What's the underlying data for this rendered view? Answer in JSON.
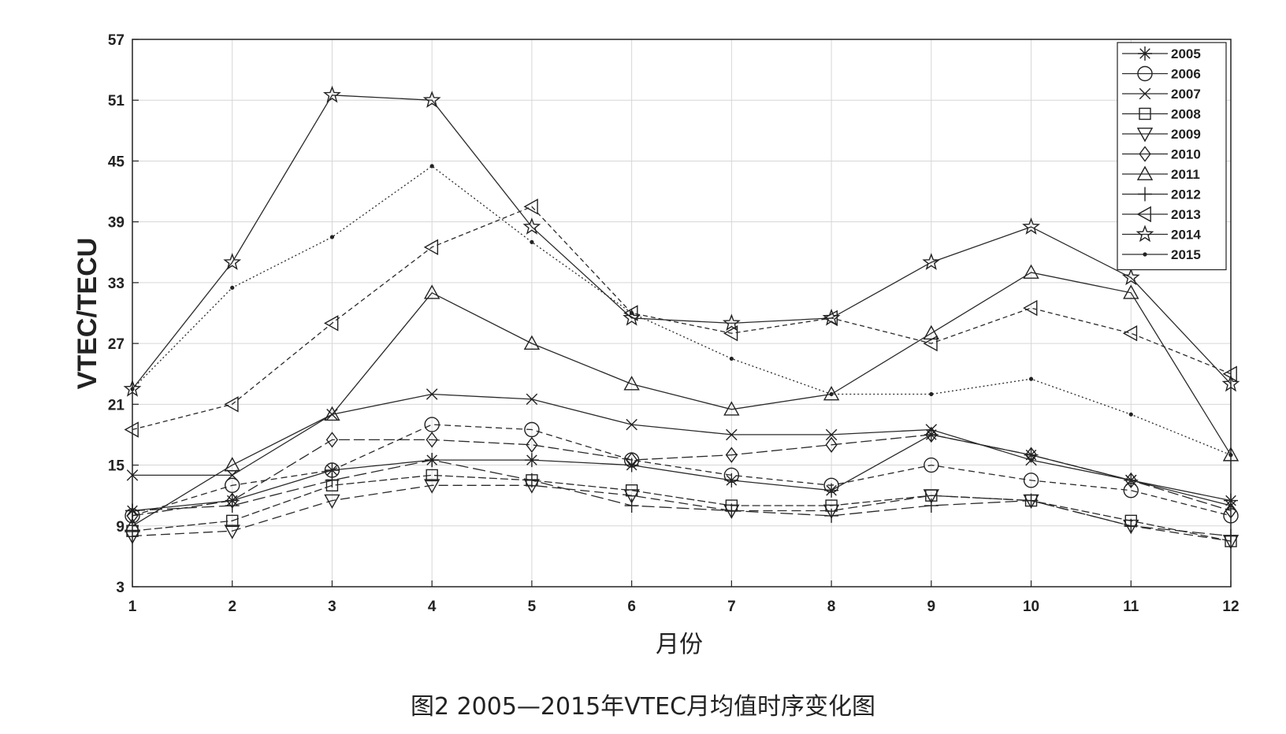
{
  "caption": "图2 2005—2015年VTEC月均值时序变化图",
  "chart_data": {
    "type": "line",
    "xlabel": "月份",
    "ylabel": "VTEC/TECU",
    "x": [
      1,
      2,
      3,
      4,
      5,
      6,
      7,
      8,
      9,
      10,
      11,
      12
    ],
    "xticks": [
      "1",
      "2",
      "3",
      "4",
      "5",
      "6",
      "7",
      "8",
      "9",
      "10",
      "11",
      "12"
    ],
    "ylim": [
      3,
      57
    ],
    "yticks": [
      "3",
      "9",
      "15",
      "21",
      "27",
      "33",
      "39",
      "45",
      "51",
      "57"
    ],
    "grid": true,
    "legend_position": "top-right",
    "series": [
      {
        "name": "2005",
        "marker": "asterisk",
        "values": [
          10.5,
          11.5,
          14.5,
          15.5,
          15.5,
          15.0,
          13.5,
          12.5,
          18.0,
          16.0,
          13.5,
          11.5
        ]
      },
      {
        "name": "2006",
        "marker": "circle",
        "values": [
          10.0,
          13.0,
          14.5,
          19.0,
          18.5,
          15.5,
          14.0,
          13.0,
          15.0,
          13.5,
          12.5,
          10.0
        ]
      },
      {
        "name": "2007",
        "marker": "x",
        "values": [
          14.0,
          14.0,
          20.0,
          22.0,
          21.5,
          19.0,
          18.0,
          18.0,
          18.5,
          15.5,
          13.5,
          11.0
        ]
      },
      {
        "name": "2008",
        "marker": "square",
        "values": [
          8.5,
          9.5,
          13.0,
          14.0,
          13.5,
          12.5,
          11.0,
          11.0,
          12.0,
          11.5,
          9.5,
          7.5
        ]
      },
      {
        "name": "2009",
        "marker": "triangle-down",
        "values": [
          8.0,
          8.5,
          11.5,
          13.0,
          13.0,
          12.0,
          10.5,
          10.5,
          12.0,
          11.5,
          9.0,
          7.5
        ]
      },
      {
        "name": "2010",
        "marker": "diamond",
        "values": [
          10.0,
          11.5,
          17.5,
          17.5,
          17.0,
          15.5,
          16.0,
          17.0,
          18.0,
          16.0,
          13.5,
          10.5
        ]
      },
      {
        "name": "2011",
        "marker": "triangle-up",
        "values": [
          9.0,
          15.0,
          20.0,
          32.0,
          27.0,
          23.0,
          20.5,
          22.0,
          28.0,
          34.0,
          32.0,
          16.0
        ]
      },
      {
        "name": "2012",
        "marker": "plus",
        "values": [
          10.5,
          11.0,
          13.5,
          15.5,
          13.5,
          11.0,
          10.5,
          10.0,
          11.0,
          11.5,
          9.0,
          8.0
        ]
      },
      {
        "name": "2013",
        "marker": "triangle-left",
        "values": [
          18.5,
          21.0,
          29.0,
          36.5,
          40.5,
          30.0,
          28.0,
          29.5,
          27.0,
          30.5,
          28.0,
          24.0
        ]
      },
      {
        "name": "2014",
        "marker": "star",
        "values": [
          22.5,
          35.0,
          51.5,
          51.0,
          38.5,
          29.5,
          29.0,
          29.5,
          35.0,
          38.5,
          33.5,
          23.0
        ]
      },
      {
        "name": "2015",
        "marker": "dot",
        "values": [
          22.5,
          32.5,
          37.5,
          44.5,
          37.0,
          30.0,
          25.5,
          22.0,
          22.0,
          23.5,
          20.0,
          16.0
        ]
      }
    ]
  }
}
